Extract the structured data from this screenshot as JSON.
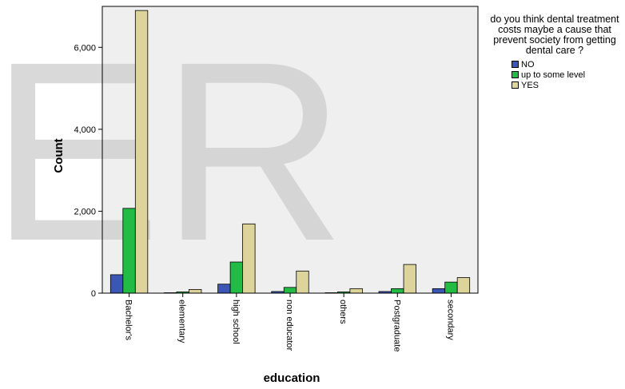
{
  "watermark": "ER",
  "legend": {
    "title": "do you think dental treatment costs maybe a cause that prevent society from getting dental care ?"
  },
  "colors": {
    "plot_bg": "#efefef",
    "NO": "#3c56b5",
    "up to some level": "#22bb44",
    "YES": "#dcd49a",
    "watermark": "#cdcdcd"
  },
  "chart_data": {
    "type": "bar",
    "xlabel": "education",
    "ylabel": "Count",
    "ylim": [
      0,
      7000
    ],
    "yticks": [
      0,
      2000,
      4000,
      6000
    ],
    "ytick_labels": [
      "0",
      "2,000",
      "4,000",
      "6,000"
    ],
    "grid": false,
    "legend_position": "right",
    "categories": [
      "Bachelor's",
      "elementary",
      "high school",
      "non educator",
      "others",
      "Postgraduate",
      "secondary"
    ],
    "series": [
      {
        "name": "NO",
        "values": [
          450,
          10,
          220,
          40,
          10,
          40,
          110
        ]
      },
      {
        "name": "up to some level",
        "values": [
          2070,
          30,
          760,
          140,
          30,
          110,
          270
        ]
      },
      {
        "name": "YES",
        "values": [
          6900,
          90,
          1690,
          540,
          110,
          700,
          380
        ]
      }
    ]
  }
}
